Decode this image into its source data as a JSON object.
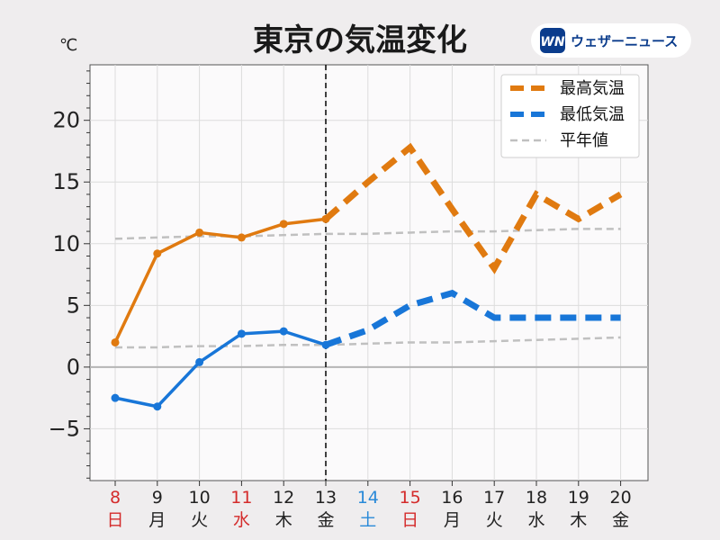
{
  "chart_data": {
    "type": "line",
    "title": "東京の気温変化",
    "unit": "℃",
    "ylim": [
      -9.2,
      24.5
    ],
    "yticks": [
      20,
      15,
      10,
      5,
      0,
      -5
    ],
    "ytick_labels": [
      "20",
      "15",
      "10",
      "5",
      "0",
      "−5"
    ],
    "categories": [
      {
        "day": "8",
        "weekday": "日",
        "color": "#d42b2b"
      },
      {
        "day": "9",
        "weekday": "月",
        "color": "#222222"
      },
      {
        "day": "10",
        "weekday": "火",
        "color": "#222222"
      },
      {
        "day": "11",
        "weekday": "水",
        "color": "#d42b2b"
      },
      {
        "day": "12",
        "weekday": "木",
        "color": "#222222"
      },
      {
        "day": "13",
        "weekday": "金",
        "color": "#222222"
      },
      {
        "day": "14",
        "weekday": "土",
        "color": "#2a8ad8"
      },
      {
        "day": "15",
        "weekday": "日",
        "color": "#d42b2b"
      },
      {
        "day": "16",
        "weekday": "月",
        "color": "#222222"
      },
      {
        "day": "17",
        "weekday": "火",
        "color": "#222222"
      },
      {
        "day": "18",
        "weekday": "水",
        "color": "#222222"
      },
      {
        "day": "19",
        "weekday": "木",
        "color": "#222222"
      },
      {
        "day": "20",
        "weekday": "金",
        "color": "#222222"
      }
    ],
    "forecast_split_index": 5,
    "series": [
      {
        "name": "最高気温",
        "color": "#e07a10",
        "values": [
          2.0,
          9.2,
          10.9,
          10.5,
          11.6,
          12.0,
          15.0,
          17.8,
          12.8,
          8.0,
          14.0,
          12.0,
          14.0
        ]
      },
      {
        "name": "最低気温",
        "color": "#1876d8",
        "values": [
          -2.5,
          -3.2,
          0.4,
          2.7,
          2.9,
          1.8,
          3.0,
          5.0,
          6.0,
          4.0,
          4.0,
          4.0,
          4.0
        ]
      },
      {
        "name": "平年値",
        "color": "#c0c0c0",
        "values": [
          10.4,
          10.5,
          10.6,
          10.6,
          10.7,
          10.8,
          10.8,
          10.9,
          11.0,
          11.0,
          11.1,
          11.2,
          11.2
        ]
      },
      {
        "name": "",
        "color": "#c0c0c0",
        "values": [
          1.6,
          1.6,
          1.7,
          1.7,
          1.8,
          1.8,
          1.9,
          2.0,
          2.0,
          2.1,
          2.2,
          2.3,
          2.4
        ]
      }
    ],
    "legend": [
      "最高気温",
      "最低気温",
      "平年値"
    ],
    "legend_position": "top-right",
    "grid": true
  },
  "logo": {
    "mark": "WN",
    "name": "ウェザーニュース",
    "color": "#0b3c8c"
  }
}
